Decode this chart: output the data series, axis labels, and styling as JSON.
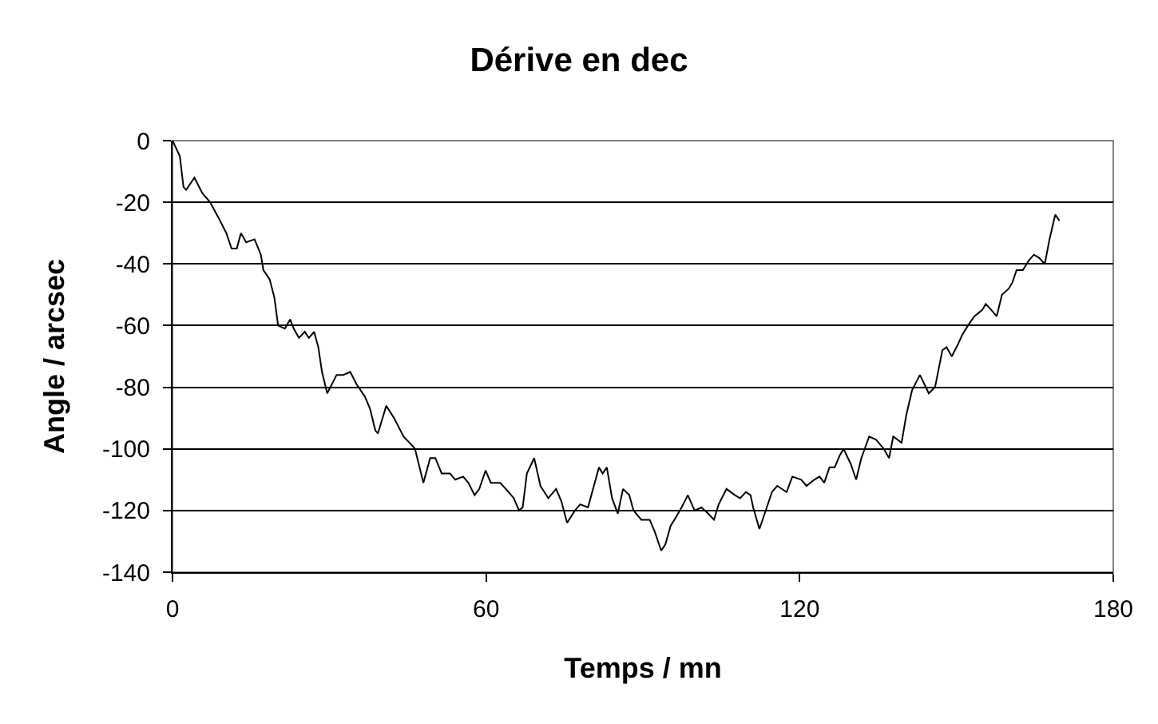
{
  "chart_data": {
    "type": "line",
    "title": "Dérive en dec",
    "xlabel": "Temps / mn",
    "ylabel": "Angle / arcsec",
    "series": [
      {
        "color": "#000000",
        "x": [
          0,
          1.4,
          2.1,
          2.6,
          4.2,
          5.7,
          7.2,
          8.8,
          10.3,
          11.3,
          12.3,
          13.1,
          14.1,
          15.7,
          16.9,
          17.4,
          18.6,
          19.5,
          20.2,
          21.5,
          22.5,
          23.2,
          24.2,
          25.3,
          26.1,
          27.1,
          27.9,
          28.6,
          29.6,
          30.2,
          31.4,
          32.7,
          34,
          35.2,
          36.8,
          37.8,
          38.8,
          39.3,
          40.9,
          42.4,
          44.2,
          45.9,
          46.4,
          48,
          49.3,
          50.3,
          51.5,
          53.1,
          54.1,
          55.6,
          56.6,
          57.8,
          58.7,
          59.9,
          60.9,
          62.7,
          64.3,
          65.3,
          66.3,
          67,
          67.8,
          69.2,
          70.4,
          71.9,
          73.4,
          74.4,
          75.5,
          77,
          78,
          79.5,
          80.3,
          81.6,
          82.3,
          83.1,
          84.1,
          85.2,
          86.2,
          87.4,
          88.2,
          89.7,
          91.3,
          92.3,
          93.5,
          94.3,
          95.3,
          96.4,
          97.4,
          98.6,
          99.9,
          101.2,
          102.5,
          103.6,
          104.5,
          106,
          107.6,
          108.6,
          109.7,
          110.6,
          111.1,
          112.3,
          113.7,
          114.7,
          115.7,
          117.5,
          118.6,
          120.3,
          121.3,
          122.8,
          123.8,
          124.7,
          125.7,
          126.7,
          127.7,
          128.4,
          129.8,
          130.8,
          131.8,
          133.3,
          134.6,
          136.1,
          137.1,
          137.9,
          139.5,
          140.4,
          141.5,
          143,
          144.7,
          145.9,
          146.6,
          147.3,
          148.1,
          149.1,
          150.3,
          151.1,
          152.2,
          153.4,
          154.9,
          155.6,
          156.7,
          157.7,
          158.7,
          160,
          160.7,
          161.5,
          162.7,
          163.8,
          164.8,
          165.8,
          166.9,
          167.8,
          168.9,
          169.7
        ],
        "values": [
          0,
          -5,
          -15,
          -16,
          -12,
          -17,
          -20,
          -25,
          -30,
          -35,
          -35,
          -30,
          -33,
          -32,
          -37,
          -42,
          -45,
          -51,
          -60,
          -61,
          -58,
          -61,
          -64,
          -62,
          -64,
          -62,
          -67,
          -75,
          -82,
          -80,
          -76,
          -76,
          -75,
          -79,
          -83,
          -87,
          -94,
          -95,
          -86,
          -90,
          -96,
          -99,
          -100,
          -111,
          -103,
          -103,
          -108,
          -108,
          -110,
          -109,
          -111,
          -115,
          -113,
          -107,
          -111,
          -111,
          -114,
          -116,
          -120,
          -119,
          -108,
          -103,
          -112,
          -116,
          -113,
          -117,
          -124,
          -120,
          -118,
          -119,
          -114,
          -106,
          -108,
          -106,
          -116,
          -121,
          -113,
          -115,
          -120,
          -123,
          -123,
          -127,
          -133,
          -131,
          -125,
          -122,
          -119,
          -115,
          -120,
          -119,
          -121,
          -123,
          -118,
          -113,
          -115,
          -116,
          -114,
          -115,
          -119,
          -126,
          -119,
          -114,
          -112,
          -114,
          -109,
          -110,
          -112,
          -110,
          -109,
          -111,
          -106,
          -106,
          -102,
          -100,
          -105,
          -110,
          -103,
          -96,
          -97,
          -100,
          -103,
          -96,
          -98,
          -89,
          -81,
          -76,
          -82,
          -80,
          -74,
          -68,
          -67,
          -70,
          -66,
          -63,
          -60,
          -57,
          -55,
          -53,
          -55,
          -57,
          -50,
          -48,
          -46,
          -42,
          -42,
          -39,
          -37,
          -38,
          -40,
          -32,
          -24,
          -26
        ]
      }
    ],
    "xlim": [
      0,
      180
    ],
    "xticks": [
      0,
      60,
      120,
      180
    ],
    "ylim": [
      -140,
      0
    ],
    "yticks": [
      -140,
      -120,
      -100,
      -80,
      -60,
      -40,
      -20,
      0
    ],
    "grid": "y",
    "marker": "none",
    "line_style": "solid"
  }
}
